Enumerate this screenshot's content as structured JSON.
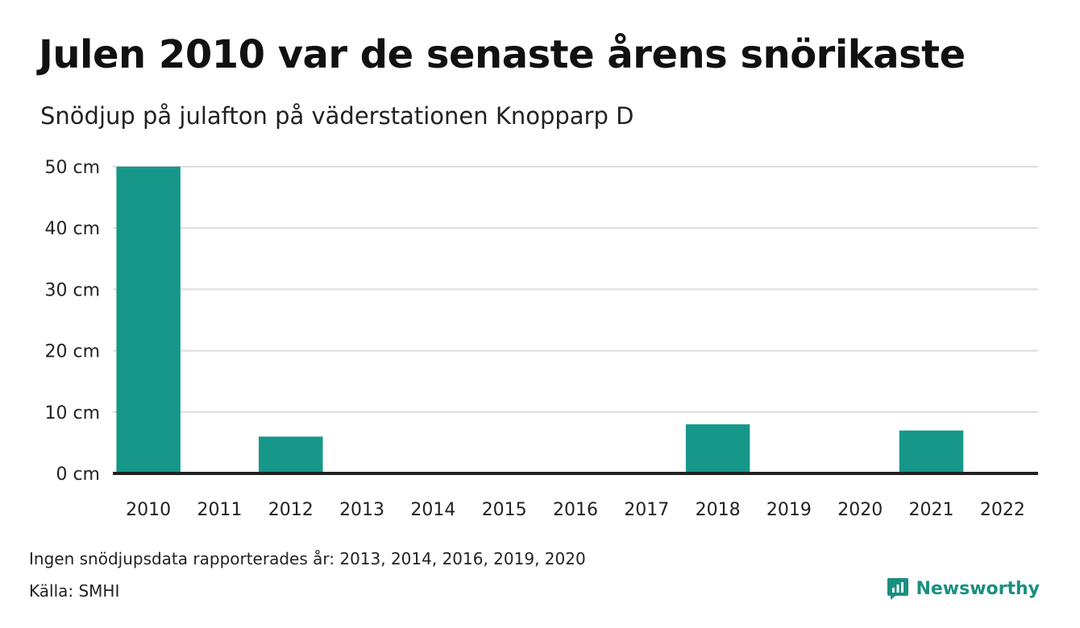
{
  "chart_data": {
    "type": "bar",
    "title": "Julen 2010 var de senaste årens snörikaste",
    "subtitle": "Snödjup på julafton på väderstationen Knopparp D",
    "categories": [
      "2010",
      "2011",
      "2012",
      "2013",
      "2014",
      "2015",
      "2016",
      "2017",
      "2018",
      "2019",
      "2020",
      "2021",
      "2022"
    ],
    "values": [
      50,
      0,
      6,
      null,
      null,
      0,
      null,
      0,
      8,
      null,
      null,
      7,
      0
    ],
    "ylim": [
      0,
      50
    ],
    "yticks": [
      0,
      10,
      20,
      30,
      40,
      50
    ],
    "yticks_labels": [
      "0 cm",
      "10 cm",
      "20 cm",
      "30 cm",
      "40 cm",
      "50 cm"
    ],
    "grid": true,
    "bar_color": "#16978a"
  },
  "footer": {
    "note": "Ingen snödjupsdata rapporterades år: 2013, 2014, 2016, 2019, 2020",
    "source": "Källa: SMHI",
    "brand": "Newsworthy",
    "brand_color": "#1a8f80",
    "brand_icon": "newsworthy-logo-icon"
  }
}
